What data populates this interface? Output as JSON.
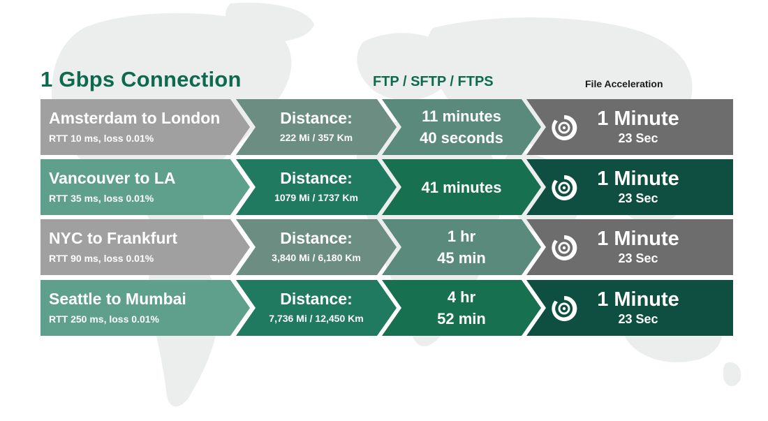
{
  "headings": {
    "main": "1 Gbps Connection",
    "ftp": "FTP / SFTP / FTPS",
    "accel": "File Acceleration"
  },
  "colors": {
    "heading_green": "#0d6a4f",
    "route_gray": "#a0a0a0",
    "route_green": "#5fa08c",
    "distance_gray": "#6b8d82",
    "distance_green": "#1f7a60",
    "ftp_gray": "#5a8a7c",
    "ftp_green": "#17704f",
    "accel_gray": "#6d6d6d",
    "accel_green": "#0f4f42",
    "map": "#eceeed"
  },
  "rows": [
    {
      "route": "Amsterdam to London",
      "meta": "RTT 10 ms, loss 0.01%",
      "distance_label": "Distance:",
      "distance_value": "222 Mi / 357 Km",
      "ftp_time": "11 minutes\n40 seconds",
      "accel_icon": "acceleration-ring-icon",
      "accel_main": "1 Minute",
      "accel_sub": "23 Sec",
      "theme": "gray"
    },
    {
      "route": "Vancouver to LA",
      "meta": "RTT 35 ms, loss 0.01%",
      "distance_label": "Distance:",
      "distance_value": "1079 Mi / 1737 Km",
      "ftp_time": "41 minutes",
      "accel_icon": "acceleration-ring-icon",
      "accel_main": "1 Minute",
      "accel_sub": "23 Sec",
      "theme": "green"
    },
    {
      "route": "NYC to Frankfurt",
      "meta": "RTT 90 ms, loss 0.01%",
      "distance_label": "Distance:",
      "distance_value": "3,840 Mi / 6,180 Km",
      "ftp_time": "1 hr\n45 min",
      "accel_icon": "acceleration-ring-icon",
      "accel_main": "1 Minute",
      "accel_sub": "23 Sec",
      "theme": "gray"
    },
    {
      "route": "Seattle to Mumbai",
      "meta": "RTT 250 ms, loss 0.01%",
      "distance_label": "Distance:",
      "distance_value": "7,736 Mi / 12,450 Km",
      "ftp_time": "4 hr\n52 min",
      "accel_icon": "acceleration-ring-icon",
      "accel_main": "1 Minute",
      "accel_sub": "23 Sec",
      "theme": "green"
    }
  ]
}
